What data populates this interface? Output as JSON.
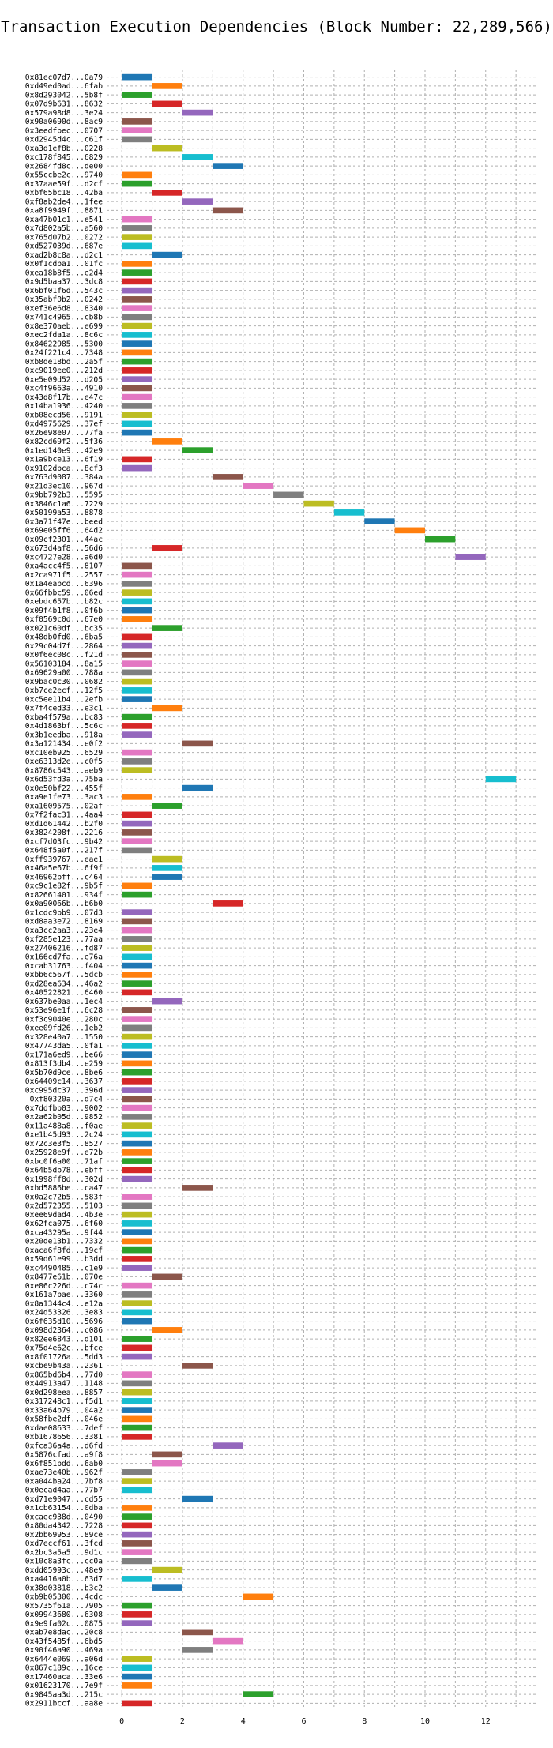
{
  "chart_data": {
    "type": "bar",
    "orientation": "horizontal",
    "title": "Transaction Execution Dependencies (Block Number: 22,289,566)",
    "xlabel": "",
    "ylabel": "",
    "xlim": [
      -0.5,
      13.7
    ],
    "xticks": [
      0,
      2,
      4,
      6,
      8,
      10,
      12
    ],
    "grid": true,
    "palette": [
      "#1f77b4",
      "#ff7f0e",
      "#2ca02c",
      "#d62728",
      "#9467bd",
      "#8c564b",
      "#e377c2",
      "#7f7f7f",
      "#bcbd22",
      "#17becf"
    ],
    "transactions": [
      {
        "label": "0x81ec07d7...0a79",
        "start": 0
      },
      {
        "label": "0xd49ed0ad...6fab",
        "start": 1
      },
      {
        "label": "0x8d293042...5b8f",
        "start": 0
      },
      {
        "label": "0x07d9b631...8632",
        "start": 1
      },
      {
        "label": "0x579a98d8...3e24",
        "start": 2
      },
      {
        "label": "0x90a0690d...8ac9",
        "start": 0
      },
      {
        "label": "0x3eedfbec...0707",
        "start": 0
      },
      {
        "label": "0xd2945d4c...c61f",
        "start": 0
      },
      {
        "label": "0xa3d1ef8b...0228",
        "start": 1
      },
      {
        "label": "0xc178f845...6829",
        "start": 2
      },
      {
        "label": "0x2684fd8c...de00",
        "start": 3
      },
      {
        "label": "0x55ccbe2c...9740",
        "start": 0
      },
      {
        "label": "0x37aae59f...d2cf",
        "start": 0
      },
      {
        "label": "0xbf65bc18...42ba",
        "start": 1
      },
      {
        "label": "0xf8ab2de4...1fee",
        "start": 2
      },
      {
        "label": "0xa8f9949f...8871",
        "start": 3
      },
      {
        "label": "0xa47b01c1...e541",
        "start": 0
      },
      {
        "label": "0x7d802a5b...a560",
        "start": 0
      },
      {
        "label": "0x765d07b2...0272",
        "start": 0
      },
      {
        "label": "0xd527039d...687e",
        "start": 0
      },
      {
        "label": "0xad2b8c8a...d2c1",
        "start": 1
      },
      {
        "label": "0x0f1cdba1...01fc",
        "start": 0
      },
      {
        "label": "0xea18b8f5...e2d4",
        "start": 0
      },
      {
        "label": "0x9d5baa37...3dc8",
        "start": 0
      },
      {
        "label": "0x6bf01f6d...543c",
        "start": 0
      },
      {
        "label": "0x35abf0b2...0242",
        "start": 0
      },
      {
        "label": "0xef36e6d8...8340",
        "start": 0
      },
      {
        "label": "0x741c4965...cb8b",
        "start": 0
      },
      {
        "label": "0x8e370aeb...e699",
        "start": 0
      },
      {
        "label": "0xec2fda1a...8c6c",
        "start": 0
      },
      {
        "label": "0x84622985...5300",
        "start": 0
      },
      {
        "label": "0x24f221c4...7348",
        "start": 0
      },
      {
        "label": "0xb8de18bd...2a5f",
        "start": 0
      },
      {
        "label": "0xc9019ee0...212d",
        "start": 0
      },
      {
        "label": "0xe5e09d52...d205",
        "start": 0
      },
      {
        "label": "0xc4f9663a...4910",
        "start": 0
      },
      {
        "label": "0x43d8f17b...e47c",
        "start": 0
      },
      {
        "label": "0x14ba1936...4240",
        "start": 0
      },
      {
        "label": "0xb08ecd56...9191",
        "start": 0
      },
      {
        "label": "0xd4975629...37ef",
        "start": 0
      },
      {
        "label": "0x26e98e07...77fa",
        "start": 0
      },
      {
        "label": "0x82cd69f2...5f36",
        "start": 1
      },
      {
        "label": "0x1ed140e9...42e9",
        "start": 2
      },
      {
        "label": "0x1a9bce13...6f19",
        "start": 0
      },
      {
        "label": "0x9102dbca...8cf3",
        "start": 0
      },
      {
        "label": "0x763d9087...384a",
        "start": 3
      },
      {
        "label": "0x21d3ec10...967d",
        "start": 4
      },
      {
        "label": "0x9bb792b3...5595",
        "start": 5
      },
      {
        "label": "0x3846c1a6...7229",
        "start": 6
      },
      {
        "label": "0x50199a53...8878",
        "start": 7
      },
      {
        "label": "0x3a71f47e...beed",
        "start": 8
      },
      {
        "label": "0x69e05ff6...64d2",
        "start": 9
      },
      {
        "label": "0x09cf2301...44ac",
        "start": 10
      },
      {
        "label": "0x673d4af8...56d6",
        "start": 1
      },
      {
        "label": "0xc4727e28...a6d0",
        "start": 11
      },
      {
        "label": "0xa4acc4f5...8107",
        "start": 0
      },
      {
        "label": "0x2ca971f5...2557",
        "start": 0
      },
      {
        "label": "0x1a4eabcd...6396",
        "start": 0
      },
      {
        "label": "0x66fbbc59...06ed",
        "start": 0
      },
      {
        "label": "0xebdc657b...b82c",
        "start": 0
      },
      {
        "label": "0x09f4b1f8...0f6b",
        "start": 0
      },
      {
        "label": "0xf0569c0d...67e0",
        "start": 0
      },
      {
        "label": "0x021c60df...bc35",
        "start": 1
      },
      {
        "label": "0x48db0fd0...6ba5",
        "start": 0
      },
      {
        "label": "0x29c04d7f...2864",
        "start": 0
      },
      {
        "label": "0x0f6ec08c...f21d",
        "start": 0
      },
      {
        "label": "0x56103184...8a15",
        "start": 0
      },
      {
        "label": "0x69629a00...788a",
        "start": 0
      },
      {
        "label": "0x9bac0c30...0682",
        "start": 0
      },
      {
        "label": "0xb7ce2ecf...12f5",
        "start": 0
      },
      {
        "label": "0xc5ee11b4...2efb",
        "start": 0
      },
      {
        "label": "0x7f4ced33...e3c1",
        "start": 1
      },
      {
        "label": "0xba4f579a...bc83",
        "start": 0
      },
      {
        "label": "0x4d1863bf...5c6c",
        "start": 0
      },
      {
        "label": "0x3b1eedba...918a",
        "start": 0
      },
      {
        "label": "0x3a121434...e0f2",
        "start": 2
      },
      {
        "label": "0xc10eb925...6529",
        "start": 0
      },
      {
        "label": "0xe6313d2e...c0f5",
        "start": 0
      },
      {
        "label": "0x8786c543...aeb9",
        "start": 0
      },
      {
        "label": "0x6d53fd3a...75ba",
        "start": 12
      },
      {
        "label": "0x0e50bf22...455f",
        "start": 2
      },
      {
        "label": "0xa9e1fe73...3ac3",
        "start": 0
      },
      {
        "label": "0xa1609575...02af",
        "start": 1
      },
      {
        "label": "0x7f2fac31...4aa4",
        "start": 0
      },
      {
        "label": "0xd1d61442...b2f0",
        "start": 0
      },
      {
        "label": "0x3824208f...2216",
        "start": 0
      },
      {
        "label": "0xcf7d03fc...9b42",
        "start": 0
      },
      {
        "label": "0x648f5a0f...217f",
        "start": 0
      },
      {
        "label": "0xff939767...eae1",
        "start": 1
      },
      {
        "label": "0x46a5e67b...6f9f",
        "start": 1
      },
      {
        "label": "0x46962bff...c464",
        "start": 1
      },
      {
        "label": "0xc9c1e82f...9b5f",
        "start": 0
      },
      {
        "label": "0x82661401...934f",
        "start": 0
      },
      {
        "label": "0x0a90066b...b6b0",
        "start": 3
      },
      {
        "label": "0x1cdc9bb9...07d3",
        "start": 0
      },
      {
        "label": "0xd8aa3e72...8169",
        "start": 0
      },
      {
        "label": "0xa3cc2aa3...23e4",
        "start": 0
      },
      {
        "label": "0xf285e123...77aa",
        "start": 0
      },
      {
        "label": "0x27406216...fd87",
        "start": 0
      },
      {
        "label": "0x166cd7fa...e76a",
        "start": 0
      },
      {
        "label": "0xcab31763...f404",
        "start": 0
      },
      {
        "label": "0xbb6c567f...5dcb",
        "start": 0
      },
      {
        "label": "0xd28ea634...46a2",
        "start": 0
      },
      {
        "label": "0x40522821...6460",
        "start": 0
      },
      {
        "label": "0x637be0aa...1ec4",
        "start": 1
      },
      {
        "label": "0x53e96e1f...6c28",
        "start": 0
      },
      {
        "label": "0xf3c9040e...280c",
        "start": 0
      },
      {
        "label": "0xee09fd26...1eb2",
        "start": 0
      },
      {
        "label": "0x328e40a7...1550",
        "start": 0
      },
      {
        "label": "0x47743da5...0fa1",
        "start": 0
      },
      {
        "label": "0x171a6ed9...be66",
        "start": 0
      },
      {
        "label": "0x813f3db4...e259",
        "start": 0
      },
      {
        "label": "0x5b70d9ce...8be6",
        "start": 0
      },
      {
        "label": "0x64409c14...3637",
        "start": 0
      },
      {
        "label": "0xc995dc37...396d",
        "start": 0
      },
      {
        "label": "0xf80320a...d7c4",
        "start": 0
      },
      {
        "label": "0x7ddfbb03...9002",
        "start": 0
      },
      {
        "label": "0x2a62b05d...9852",
        "start": 0
      },
      {
        "label": "0x11a488a8...f0ae",
        "start": 0
      },
      {
        "label": "0xe1b45d93...2c24",
        "start": 0
      },
      {
        "label": "0x72c3e3f5...8527",
        "start": 0
      },
      {
        "label": "0x25928e9f...e72b",
        "start": 0
      },
      {
        "label": "0xbc0f6a00...71af",
        "start": 0
      },
      {
        "label": "0x64b5db78...ebff",
        "start": 0
      },
      {
        "label": "0x1998ff8d...302d",
        "start": 0
      },
      {
        "label": "0xbd5886be...ca47",
        "start": 2
      },
      {
        "label": "0x0a2c72b5...583f",
        "start": 0
      },
      {
        "label": "0x2d572355...5103",
        "start": 0
      },
      {
        "label": "0xee69dad4...4b3e",
        "start": 0
      },
      {
        "label": "0x62fca075...6f60",
        "start": 0
      },
      {
        "label": "0xca43295a...9f44",
        "start": 0
      },
      {
        "label": "0x20de13b1...7332",
        "start": 0
      },
      {
        "label": "0xaca6f8fd...19cf",
        "start": 0
      },
      {
        "label": "0x59d61e99...b3dd",
        "start": 0
      },
      {
        "label": "0xc4490485...c1e9",
        "start": 0
      },
      {
        "label": "0x8477e61b...070e",
        "start": 1
      },
      {
        "label": "0xe86c226d...c74c",
        "start": 0
      },
      {
        "label": "0x161a7bae...3360",
        "start": 0
      },
      {
        "label": "0x8a1344c4...e12a",
        "start": 0
      },
      {
        "label": "0x24d53326...3e83",
        "start": 0
      },
      {
        "label": "0x6f635d10...5696",
        "start": 0
      },
      {
        "label": "0x098d2364...c086",
        "start": 1
      },
      {
        "label": "0x82ee6843...d101",
        "start": 0
      },
      {
        "label": "0x75d4e62c...bfce",
        "start": 0
      },
      {
        "label": "0x8f01726a...5dd3",
        "start": 0
      },
      {
        "label": "0xcbe9b43a...2361",
        "start": 2
      },
      {
        "label": "0x865bd6b4...77d0",
        "start": 0
      },
      {
        "label": "0x44913a47...1148",
        "start": 0
      },
      {
        "label": "0x0d298eea...8857",
        "start": 0
      },
      {
        "label": "0x317248c1...f5d1",
        "start": 0
      },
      {
        "label": "0x33a64b79...04a2",
        "start": 0
      },
      {
        "label": "0x58fbe2df...046e",
        "start": 0
      },
      {
        "label": "0xdae08633...7def",
        "start": 0
      },
      {
        "label": "0xb1678656...3381",
        "start": 0
      },
      {
        "label": "0xfca36a4a...d6fd",
        "start": 3
      },
      {
        "label": "0x5876cfad...a9f8",
        "start": 1
      },
      {
        "label": "0x6f851bdd...6ab0",
        "start": 1
      },
      {
        "label": "0xae73e40b...962f",
        "start": 0
      },
      {
        "label": "0xa044ba24...7bf8",
        "start": 0
      },
      {
        "label": "0x0ecad4aa...77b7",
        "start": 0
      },
      {
        "label": "0xd71e9047...cd55",
        "start": 2
      },
      {
        "label": "0x1cb63154...0dba",
        "start": 0
      },
      {
        "label": "0xcaec938d...0490",
        "start": 0
      },
      {
        "label": "0x80da4342...7228",
        "start": 0
      },
      {
        "label": "0x2bb69953...89ce",
        "start": 0
      },
      {
        "label": "0xd7eccf61...3fcd",
        "start": 0
      },
      {
        "label": "0x2bc3a5a5...9d1c",
        "start": 0
      },
      {
        "label": "0x10c8a3fc...cc0a",
        "start": 0
      },
      {
        "label": "0xdd05993c...48e9",
        "start": 1
      },
      {
        "label": "0xa4416a0b...63d7",
        "start": 0
      },
      {
        "label": "0x38d03818...b3c2",
        "start": 1
      },
      {
        "label": "0xb9b05300...4cdc",
        "start": 4
      },
      {
        "label": "0x5735f61a...7905",
        "start": 0
      },
      {
        "label": "0x09943680...6308",
        "start": 0
      },
      {
        "label": "0x9e9fa02c...0875",
        "start": 0
      },
      {
        "label": "0xab7e8dac...20c8",
        "start": 2
      },
      {
        "label": "0x43f5485f...6bd5",
        "start": 3
      },
      {
        "label": "0x90f46a90...469a",
        "start": 2
      },
      {
        "label": "0x6444e069...a06d",
        "start": 0
      },
      {
        "label": "0x867c189c...16ce",
        "start": 0
      },
      {
        "label": "0x17460aca...33e6",
        "start": 0
      },
      {
        "label": "0x01623170...7e9f",
        "start": 0
      },
      {
        "label": "0x9845aa3d...215c",
        "start": 4
      },
      {
        "label": "0x2911bccf...aa8e",
        "start": 0
      }
    ],
    "bar_duration": 1
  }
}
